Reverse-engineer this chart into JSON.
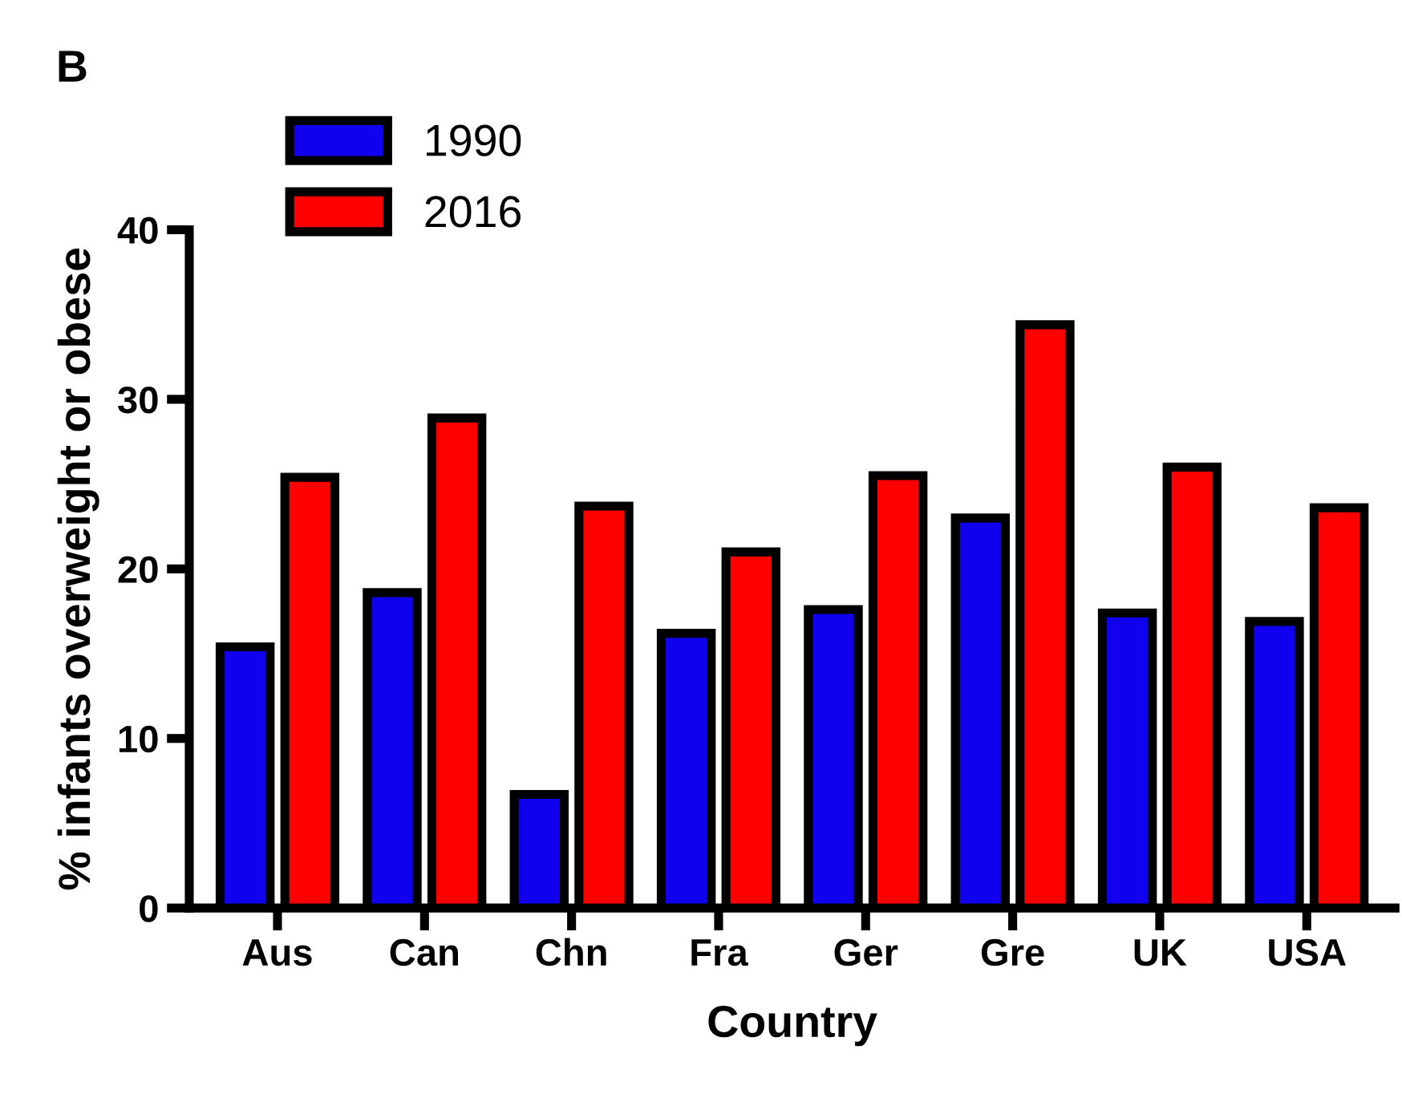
{
  "chart_data": {
    "type": "bar",
    "xlabel": "Country",
    "ylabel": "% infants overweight or obese",
    "annotations": [
      "B"
    ],
    "categories": [
      "Aus",
      "Can",
      "Chn",
      "Fra",
      "Ger",
      "Gre",
      "UK",
      "USA"
    ],
    "series": [
      {
        "name": "1990",
        "color": "#1100ee",
        "values": [
          15.4,
          18.6,
          6.7,
          16.2,
          17.6,
          23.0,
          17.4,
          16.9
        ]
      },
      {
        "name": "2016",
        "color": "#ff0000",
        "values": [
          25.4,
          28.9,
          23.7,
          21.0,
          25.5,
          34.4,
          26.0,
          23.6
        ]
      }
    ],
    "ylim": [
      0,
      40
    ],
    "yticks": [
      0,
      10,
      20,
      30,
      40
    ],
    "grid": false,
    "legend": "top left"
  }
}
